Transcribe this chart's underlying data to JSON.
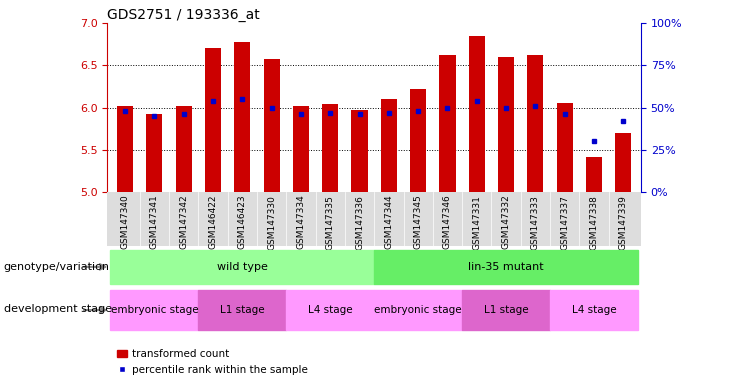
{
  "title": "GDS2751 / 193336_at",
  "samples": [
    "GSM147340",
    "GSM147341",
    "GSM147342",
    "GSM146422",
    "GSM146423",
    "GSM147330",
    "GSM147334",
    "GSM147335",
    "GSM147336",
    "GSM147344",
    "GSM147345",
    "GSM147346",
    "GSM147331",
    "GSM147332",
    "GSM147333",
    "GSM147337",
    "GSM147338",
    "GSM147339"
  ],
  "transformed_count": [
    6.02,
    5.92,
    6.02,
    6.7,
    6.78,
    6.57,
    6.02,
    6.04,
    5.97,
    6.1,
    6.22,
    6.62,
    6.85,
    6.6,
    6.62,
    6.05,
    5.42,
    5.7
  ],
  "percentile_rank": [
    48,
    45,
    46,
    54,
    55,
    50,
    46,
    47,
    46,
    47,
    48,
    50,
    54,
    50,
    51,
    46,
    30,
    42
  ],
  "bar_bottom": 5.0,
  "ylim_left": [
    5.0,
    7.0
  ],
  "ylim_right": [
    0,
    100
  ],
  "yticks_left": [
    5.0,
    5.5,
    6.0,
    6.5,
    7.0
  ],
  "yticks_right": [
    0,
    25,
    50,
    75,
    100
  ],
  "bar_color": "#cc0000",
  "dot_color": "#0000cc",
  "genotype_groups": [
    {
      "label": "wild type",
      "start": 0,
      "end": 9,
      "color": "#99ff99"
    },
    {
      "label": "lin-35 mutant",
      "start": 9,
      "end": 18,
      "color": "#66ee66"
    }
  ],
  "dev_groups": [
    {
      "label": "embryonic stage",
      "start": 0,
      "end": 3,
      "color": "#ff99ff"
    },
    {
      "label": "L1 stage",
      "start": 3,
      "end": 6,
      "color": "#dd66dd"
    },
    {
      "label": "L4 stage",
      "start": 6,
      "end": 9,
      "color": "#ff99ff"
    },
    {
      "label": "embryonic stage",
      "start": 9,
      "end": 12,
      "color": "#ff99ff"
    },
    {
      "label": "L1 stage",
      "start": 12,
      "end": 15,
      "color": "#dd66dd"
    },
    {
      "label": "L4 stage",
      "start": 15,
      "end": 18,
      "color": "#ff99ff"
    }
  ],
  "genotype_label": "genotype/variation",
  "dev_label": "development stage",
  "legend_items": [
    "transformed count",
    "percentile rank within the sample"
  ],
  "title_fontsize": 10,
  "tick_fontsize": 6.5,
  "label_fontsize": 8,
  "grid_yticks": [
    5.5,
    6.0,
    6.5
  ]
}
